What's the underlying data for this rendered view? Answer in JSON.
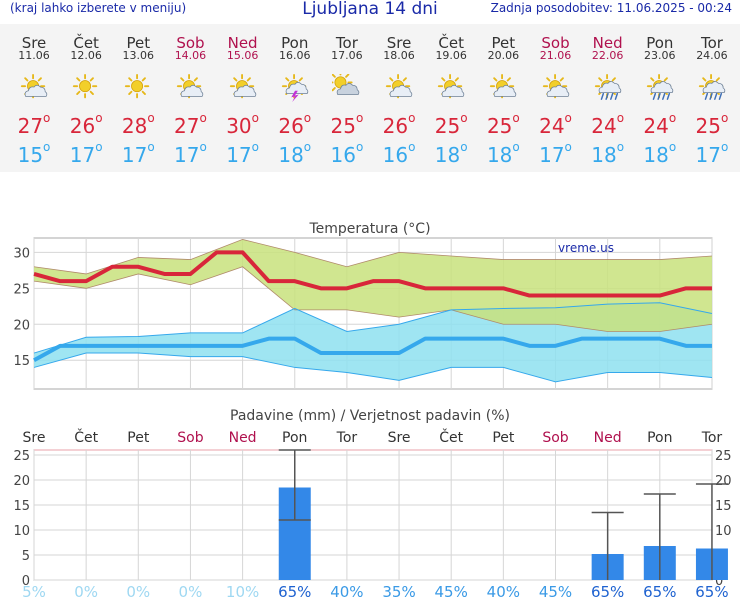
{
  "header": {
    "selector_hint": "(kraj lahko izberete v meniju)",
    "title": "Ljubljana 14 dni",
    "updated": "Zadnja posodobitev: 11.06.2025 - 00:24"
  },
  "degree_symbol": "o",
  "days": [
    {
      "name": "Sre",
      "date": "11.06",
      "weekend": false,
      "icon": "sun-cloud-icon",
      "tmax": "27",
      "tmin": "15"
    },
    {
      "name": "Čet",
      "date": "12.06",
      "weekend": false,
      "icon": "sun-icon",
      "tmax": "26",
      "tmin": "17"
    },
    {
      "name": "Pet",
      "date": "13.06",
      "weekend": false,
      "icon": "sun-icon",
      "tmax": "28",
      "tmin": "17"
    },
    {
      "name": "Sob",
      "date": "14.06",
      "weekend": true,
      "icon": "sun-cloud-icon",
      "tmax": "27",
      "tmin": "17"
    },
    {
      "name": "Ned",
      "date": "15.06",
      "weekend": true,
      "icon": "sun-cloud-icon",
      "tmax": "30",
      "tmin": "17"
    },
    {
      "name": "Pon",
      "date": "16.06",
      "weekend": false,
      "icon": "sun-cloud-thunder-icon",
      "tmax": "26",
      "tmin": "18"
    },
    {
      "name": "Tor",
      "date": "17.06",
      "weekend": false,
      "icon": "cloud-icon",
      "tmax": "25",
      "tmin": "16"
    },
    {
      "name": "Sre",
      "date": "18.06",
      "weekend": false,
      "icon": "sun-cloud-icon",
      "tmax": "26",
      "tmin": "16"
    },
    {
      "name": "Čet",
      "date": "19.06",
      "weekend": false,
      "icon": "sun-cloud-icon",
      "tmax": "25",
      "tmin": "18"
    },
    {
      "name": "Pet",
      "date": "20.06",
      "weekend": false,
      "icon": "sun-cloud-icon",
      "tmax": "25",
      "tmin": "18"
    },
    {
      "name": "Sob",
      "date": "21.06",
      "weekend": true,
      "icon": "sun-cloud-icon",
      "tmax": "24",
      "tmin": "17"
    },
    {
      "name": "Ned",
      "date": "22.06",
      "weekend": true,
      "icon": "sun-cloud-rain-icon",
      "tmax": "24",
      "tmin": "18"
    },
    {
      "name": "Pon",
      "date": "23.06",
      "weekend": false,
      "icon": "sun-cloud-rain-icon",
      "tmax": "24",
      "tmin": "18"
    },
    {
      "name": "Tor",
      "date": "24.06",
      "weekend": false,
      "icon": "sun-cloud-rain-icon",
      "tmax": "25",
      "tmin": "17"
    }
  ],
  "colors": {
    "max": "#d8263a",
    "min": "#35a8ec",
    "band_max": "#c8e27c",
    "band_min": "#8ee0f0",
    "band_overlap": "#7ecb8a",
    "bar": "#3388e8",
    "weekend": "#b0114e"
  },
  "chart_data": [
    {
      "type": "line",
      "title": "Temperatura (°C)",
      "watermark": "vreme.us",
      "ylim": [
        11,
        32
      ],
      "yticks": [
        15,
        20,
        25,
        30
      ],
      "grid": true,
      "categories": [
        "Sre",
        "Čet",
        "Pet",
        "Sob",
        "Ned",
        "Pon",
        "Tor",
        "Sre",
        "Čet",
        "Pet",
        "Sob",
        "Ned",
        "Pon",
        "Tor"
      ],
      "series": [
        {
          "values": [
            27,
            26,
            28,
            27,
            30,
            26,
            25,
            26,
            25,
            25,
            24,
            24,
            24,
            25
          ]
        },
        {
          "values": [
            15,
            17,
            17,
            17,
            17,
            18,
            16,
            16,
            18,
            18,
            17,
            18,
            18,
            17
          ]
        }
      ],
      "max_range": {
        "low": [
          26,
          25,
          27,
          25.5,
          28,
          22,
          22,
          21,
          22,
          20,
          20,
          19,
          19,
          20
        ],
        "high": [
          28,
          27,
          29.3,
          29,
          31.8,
          30,
          28,
          30,
          29.5,
          29,
          29,
          29,
          29,
          29.5
        ]
      },
      "min_range": {
        "low": [
          14,
          16,
          16,
          15.5,
          15.5,
          14,
          13.3,
          12.2,
          14,
          14,
          12,
          13.3,
          13.3,
          12.6
        ],
        " high_note": "",
        "high": [
          16,
          18.2,
          18.3,
          18.8,
          18.8,
          22.2,
          19,
          20,
          22,
          22.2,
          22.3,
          22.8,
          23,
          21.5
        ]
      }
    },
    {
      "type": "bar",
      "title": "Padavine (mm) / Verjetnost padavin (%)",
      "ylim": [
        0,
        26
      ],
      "yticks": [
        0,
        5,
        10,
        15,
        20,
        25
      ],
      "grid": true,
      "categories": [
        "Sre",
        "Čet",
        "Pet",
        "Sob",
        "Ned",
        "Pon",
        "Tor",
        "Sre",
        "Čet",
        "Pet",
        "Sob",
        "Ned",
        "Pon",
        "Tor"
      ],
      "values": [
        0,
        0,
        0,
        0,
        0,
        18.5,
        0,
        0,
        0,
        0,
        0,
        5.2,
        6.8,
        6.3
      ],
      "error_bars": [
        null,
        null,
        null,
        null,
        null,
        {
          "low": 12,
          "high": 26
        },
        null,
        null,
        null,
        null,
        null,
        {
          "low": 0,
          "high": 13.5
        },
        {
          "low": 0,
          "high": 17.2
        },
        {
          "low": 0,
          "high": 19.2
        }
      ],
      "probability_labels": [
        "5%",
        "0%",
        "0%",
        "0%",
        "10%",
        "65%",
        "40%",
        "35%",
        "45%",
        "40%",
        "45%",
        "65%",
        "65%",
        "65%"
      ]
    }
  ]
}
